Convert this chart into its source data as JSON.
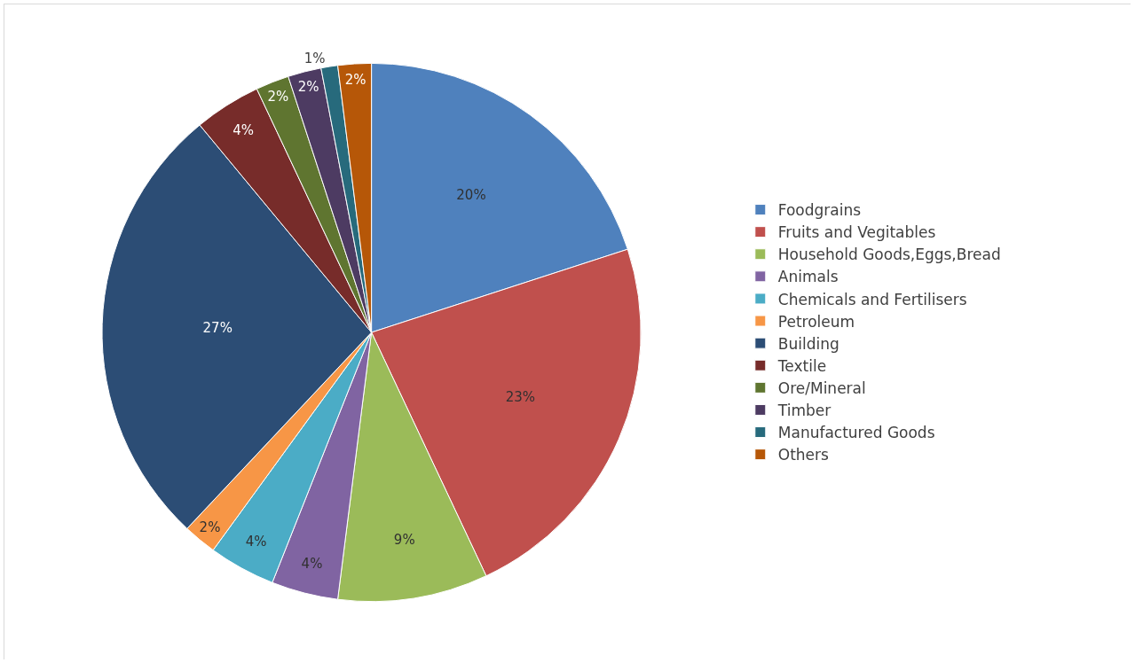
{
  "chart_data": {
    "type": "pie",
    "categories": [
      "Foodgrains",
      "Fruits and Vegitables",
      "Household Goods,Eggs,Bread",
      "Animals",
      "Chemicals and Fertilisers",
      "Petroleum",
      "Building",
      "Textile",
      "Ore/Mineral",
      "Timber",
      "Manufactured Goods",
      "Others"
    ],
    "values": [
      20,
      23,
      9,
      4,
      4,
      2,
      27,
      4,
      2,
      2,
      1,
      2
    ],
    "value_labels": [
      "20%",
      "23%",
      "9%",
      "4%",
      "4%",
      "2%",
      "27%",
      "4%",
      "2%",
      "2%",
      "1%",
      "2%"
    ],
    "colors": [
      "#4f81bd",
      "#c0504d",
      "#9bbb59",
      "#8064a2",
      "#4bacc6",
      "#f79646",
      "#2c4d75",
      "#772c2a",
      "#5f7530",
      "#4d3b62",
      "#276a7c",
      "#b65708"
    ],
    "legend": "right"
  }
}
